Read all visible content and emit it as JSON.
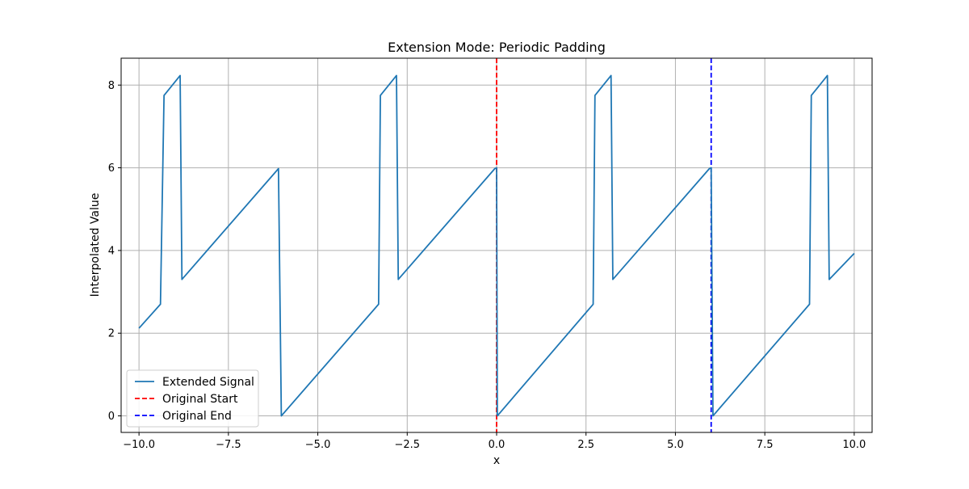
{
  "chart_data": {
    "type": "line",
    "title": "Extension Mode: Periodic Padding",
    "xlabel": "x",
    "ylabel": "Interpolated Value",
    "xlim": [
      -10.5,
      10.5
    ],
    "ylim": [
      -0.4,
      8.65
    ],
    "xticks": [
      -10.0,
      -7.5,
      -5.0,
      -2.5,
      0.0,
      2.5,
      5.0,
      7.5,
      10.0
    ],
    "xtick_labels": [
      "−10.0",
      "−7.5",
      "−5.0",
      "−2.5",
      "0.0",
      "2.5",
      "5.0",
      "7.5",
      "10.0"
    ],
    "yticks": [
      0,
      2,
      4,
      6,
      8
    ],
    "ytick_labels": [
      "0",
      "2",
      "4",
      "6",
      "8"
    ],
    "grid": true,
    "legend_position": "lower-left",
    "series": [
      {
        "name": "Extended Signal",
        "color": "#1f77b4",
        "style": "solid",
        "x": [
          -10.0,
          -9.4,
          -9.3,
          -8.85,
          -8.8,
          -6.1,
          -6.02,
          -3.3,
          -3.25,
          -2.8,
          -2.75,
          -0.05,
          0.0,
          0.02,
          2.7,
          2.75,
          3.2,
          3.25,
          5.95,
          6.0,
          6.05,
          8.75,
          8.8,
          9.25,
          9.3,
          10.0
        ],
        "y": [
          2.12,
          2.7,
          7.75,
          8.23,
          3.3,
          5.98,
          0.0,
          2.7,
          7.75,
          8.23,
          3.3,
          5.98,
          6.0,
          0.0,
          2.7,
          7.75,
          8.23,
          3.3,
          5.98,
          6.0,
          0.0,
          2.7,
          7.75,
          8.23,
          3.3,
          3.93
        ]
      },
      {
        "name": "Original Start",
        "color": "#ff0000",
        "style": "dashed",
        "vline_x": 0.0
      },
      {
        "name": "Original End",
        "color": "#0000ff",
        "style": "dashed",
        "vline_x": 6.0
      }
    ]
  }
}
